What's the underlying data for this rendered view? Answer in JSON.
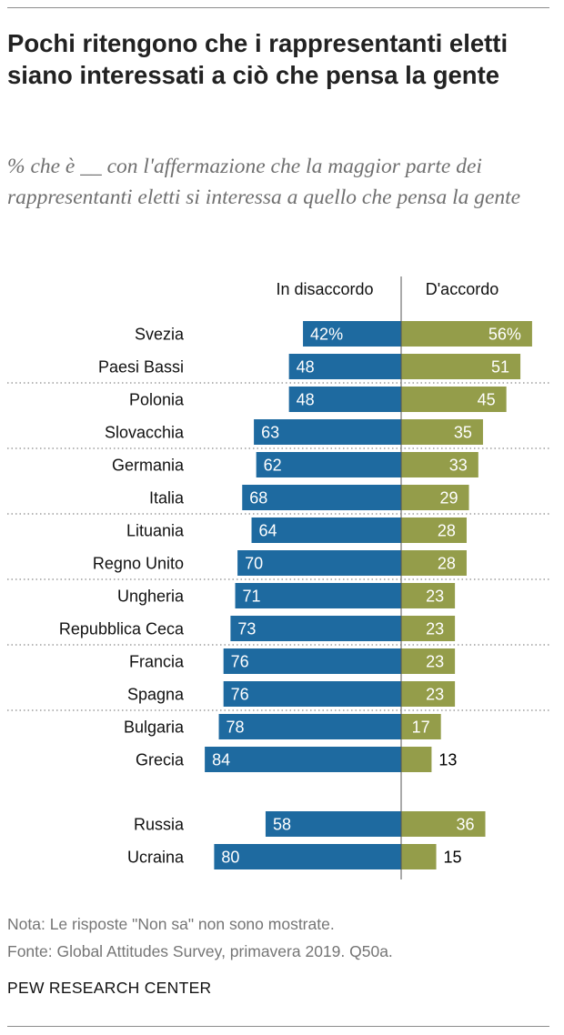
{
  "header": {
    "title": "Pochi ritengono che i rappresentanti eletti siano interessati a ciò che pensa la gente",
    "subtitle": "% che è __ con l'affermazione che la maggior parte dei rappresentanti eletti si interessa a quello che pensa la gente"
  },
  "footer": {
    "note": "Nota: Le risposte \"Non sa\" non sono mostrate.",
    "source": "Fonte: Global Attitudes Survey, primavera 2019. Q50a.",
    "org": "PEW RESEARCH CENTER"
  },
  "colors": {
    "disagree": "#1e6aa0",
    "agree": "#949d4a",
    "label_inside": "#ffffff",
    "label_outside": "#000000",
    "divider": "#555555"
  },
  "chart_data": {
    "type": "bar",
    "orientation": "horizontal-diverging",
    "categories": [
      "Svezia",
      "Paesi Bassi",
      "Polonia",
      "Slovacchia",
      "Germania",
      "Italia",
      "Lituania",
      "Regno Unito",
      "Ungheria",
      "Repubblica Ceca",
      "Francia",
      "Spagna",
      "Bulgaria",
      "Grecia",
      "Russia",
      "Ucraina"
    ],
    "series": [
      {
        "name": "In disaccordo",
        "values": [
          42,
          48,
          48,
          63,
          62,
          68,
          64,
          70,
          71,
          73,
          76,
          76,
          78,
          84,
          58,
          80
        ]
      },
      {
        "name": "D'accordo",
        "values": [
          56,
          51,
          45,
          35,
          33,
          29,
          28,
          28,
          23,
          23,
          23,
          23,
          17,
          13,
          36,
          15
        ]
      }
    ],
    "value_labels": [
      [
        "42%",
        "56%"
      ],
      [
        "48",
        "51"
      ],
      [
        "48",
        "45"
      ],
      [
        "63",
        "35"
      ],
      [
        "62",
        "33"
      ],
      [
        "68",
        "29"
      ],
      [
        "64",
        "28"
      ],
      [
        "70",
        "28"
      ],
      [
        "71",
        "23"
      ],
      [
        "73",
        "23"
      ],
      [
        "76",
        "23"
      ],
      [
        "76",
        "23"
      ],
      [
        "78",
        "17"
      ],
      [
        "84",
        "13"
      ],
      [
        "58",
        "36"
      ],
      [
        "80",
        "15"
      ]
    ],
    "group_separators_after": [
      "Paesi Bassi",
      "Slovacchia",
      "Italia",
      "Regno Unito",
      "Repubblica Ceca",
      "Spagna"
    ],
    "gap_before": "Russia",
    "xlim": [
      0,
      100
    ],
    "grid": false,
    "legend": "top"
  }
}
